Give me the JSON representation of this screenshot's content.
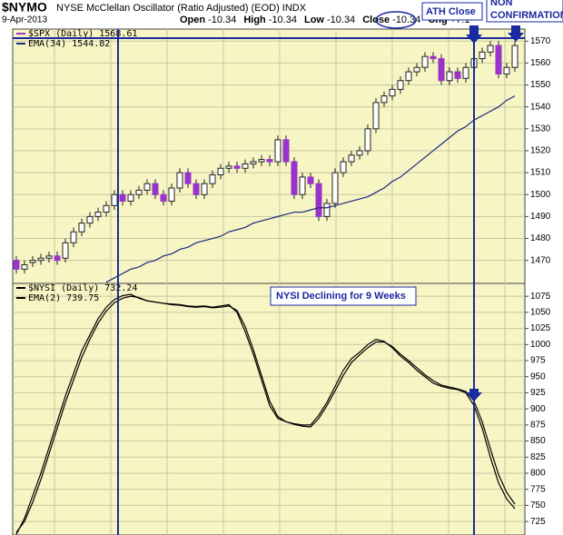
{
  "header": {
    "symbol": "$NYMO",
    "name": "NYSE McClellan Oscillator (Ratio Adjusted) (EOD) INDX",
    "date": "9-Apr-2013",
    "quote": [
      {
        "label": "Open",
        "value": "-10.34"
      },
      {
        "label": "High",
        "value": "-10.34"
      },
      {
        "label": "Low",
        "value": "-10.34"
      },
      {
        "label": "Close",
        "value": "-10.34"
      },
      {
        "label": "Chg",
        "value": "+7.1"
      }
    ]
  },
  "annotations": {
    "ath": "ATH Close",
    "non1": "NON",
    "non2": "CONFIRMATION",
    "nysi": "NYSI Declining for 9 Weeks"
  },
  "chart_data": [
    {
      "type": "candlestick",
      "series": [
        {
          "name": "$SPX (Daily) 1568.61",
          "color": "#9933cc",
          "open": [
            1470,
            1466,
            1469,
            1470,
            1471,
            1472,
            1471,
            1478,
            1483,
            1487,
            1490,
            1492,
            1495,
            1500,
            1497,
            1500,
            1502,
            1505,
            1500,
            1497,
            1503,
            1510,
            1505,
            1500,
            1505,
            1509,
            1512,
            1513,
            1512,
            1514,
            1515,
            1516,
            1515,
            1525,
            1515,
            1500,
            1508,
            1505,
            1490,
            1496,
            1510,
            1515,
            1518,
            1520,
            1530,
            1542,
            1545,
            1548,
            1552,
            1556,
            1558,
            1563,
            1562,
            1552,
            1556,
            1553,
            1558,
            1562,
            1565,
            1568,
            1555,
            1558
          ],
          "high": [
            1472,
            1470,
            1472,
            1473,
            1474,
            1474,
            1480,
            1485,
            1489,
            1492,
            1494,
            1497,
            1502,
            1502,
            1502,
            1504,
            1507,
            1507,
            1502,
            1505,
            1512,
            1512,
            1507,
            1507,
            1511,
            1514,
            1515,
            1515,
            1516,
            1517,
            1518,
            1518,
            1527,
            1527,
            1517,
            1510,
            1510,
            1507,
            1498,
            1512,
            1517,
            1520,
            1522,
            1532,
            1544,
            1547,
            1550,
            1554,
            1558,
            1560,
            1565,
            1565,
            1564,
            1558,
            1558,
            1560,
            1564,
            1567,
            1570,
            1570,
            1560,
            1570
          ],
          "low": [
            1464,
            1464,
            1467,
            1468,
            1469,
            1468,
            1469,
            1476,
            1481,
            1485,
            1488,
            1490,
            1493,
            1495,
            1495,
            1498,
            1500,
            1498,
            1495,
            1495,
            1501,
            1503,
            1498,
            1498,
            1503,
            1507,
            1510,
            1510,
            1510,
            1512,
            1513,
            1513,
            1513,
            1513,
            1498,
            1498,
            1503,
            1488,
            1488,
            1494,
            1508,
            1513,
            1516,
            1518,
            1528,
            1540,
            1543,
            1546,
            1550,
            1554,
            1556,
            1560,
            1550,
            1550,
            1551,
            1551,
            1556,
            1560,
            1563,
            1553,
            1553,
            1556
          ],
          "close": [
            1466,
            1468,
            1470,
            1471,
            1472,
            1470,
            1478,
            1483,
            1487,
            1490,
            1492,
            1495,
            1500,
            1497,
            1500,
            1502,
            1505,
            1500,
            1497,
            1503,
            1510,
            1505,
            1500,
            1505,
            1509,
            1512,
            1513,
            1512,
            1514,
            1515,
            1516,
            1515,
            1525,
            1515,
            1500,
            1508,
            1505,
            1490,
            1496,
            1510,
            1515,
            1518,
            1520,
            1530,
            1542,
            1545,
            1548,
            1552,
            1556,
            1558,
            1563,
            1562,
            1552,
            1556,
            1553,
            1558,
            1562,
            1565,
            1568,
            1555,
            1558,
            1568
          ]
        },
        {
          "name": "EMA(34) 1544.82",
          "color": "#1a2a80",
          "values": [
            null,
            null,
            null,
            null,
            null,
            null,
            null,
            null,
            null,
            null,
            null,
            1460,
            1462,
            1464,
            1466,
            1467,
            1469,
            1470,
            1472,
            1473,
            1475,
            1476,
            1478,
            1479,
            1480,
            1481,
            1483,
            1484,
            1485,
            1487,
            1488,
            1489,
            1490,
            1491,
            1492,
            1492,
            1493,
            1494,
            1494,
            1495,
            1496,
            1497,
            1498,
            1499,
            1501,
            1503,
            1506,
            1508,
            1511,
            1514,
            1517,
            1520,
            1523,
            1526,
            1529,
            1531,
            1534,
            1536,
            1538,
            1540,
            1543,
            1545
          ]
        }
      ],
      "ylim": [
        1459.5,
        1575.5
      ],
      "yticks": [
        1470,
        1480,
        1490,
        1500,
        1510,
        1520,
        1530,
        1540,
        1550,
        1560,
        1570
      ],
      "grid": true
    },
    {
      "type": "line",
      "series": [
        {
          "name": "$NYSI (Daily) 732.24",
          "color": "#000000",
          "values": [
            705,
            730,
            765,
            800,
            840,
            880,
            920,
            955,
            990,
            1015,
            1040,
            1058,
            1070,
            1076,
            1078,
            1072,
            1068,
            1066,
            1064,
            1063,
            1062,
            1060,
            1059,
            1060,
            1058,
            1060,
            1062,
            1050,
            1020,
            985,
            945,
            905,
            885,
            880,
            877,
            875,
            875,
            890,
            910,
            935,
            960,
            978,
            988,
            1000,
            1008,
            1005,
            995,
            982,
            972,
            960,
            950,
            940,
            935,
            932,
            930,
            925,
            905,
            870,
            825,
            785,
            760,
            745
          ]
        },
        {
          "name": "EMA(2) 739.75",
          "color": "#000000",
          "values": [
            708,
            725,
            755,
            790,
            830,
            870,
            910,
            945,
            980,
            1008,
            1033,
            1052,
            1065,
            1072,
            1075,
            1073,
            1068,
            1066,
            1064,
            1062,
            1061,
            1059,
            1058,
            1059,
            1057,
            1058,
            1060,
            1053,
            1028,
            992,
            952,
            912,
            888,
            880,
            876,
            873,
            872,
            885,
            905,
            928,
            952,
            972,
            984,
            995,
            1004,
            1004,
            997,
            985,
            975,
            964,
            953,
            944,
            937,
            934,
            931,
            927,
            912,
            880,
            838,
            798,
            770,
            752
          ]
        }
      ],
      "ylim": [
        704,
        1095
      ],
      "yticks": [
        725,
        750,
        775,
        800,
        825,
        850,
        875,
        900,
        925,
        950,
        975,
        1000,
        1025,
        1050,
        1075
      ],
      "grid": true
    }
  ]
}
